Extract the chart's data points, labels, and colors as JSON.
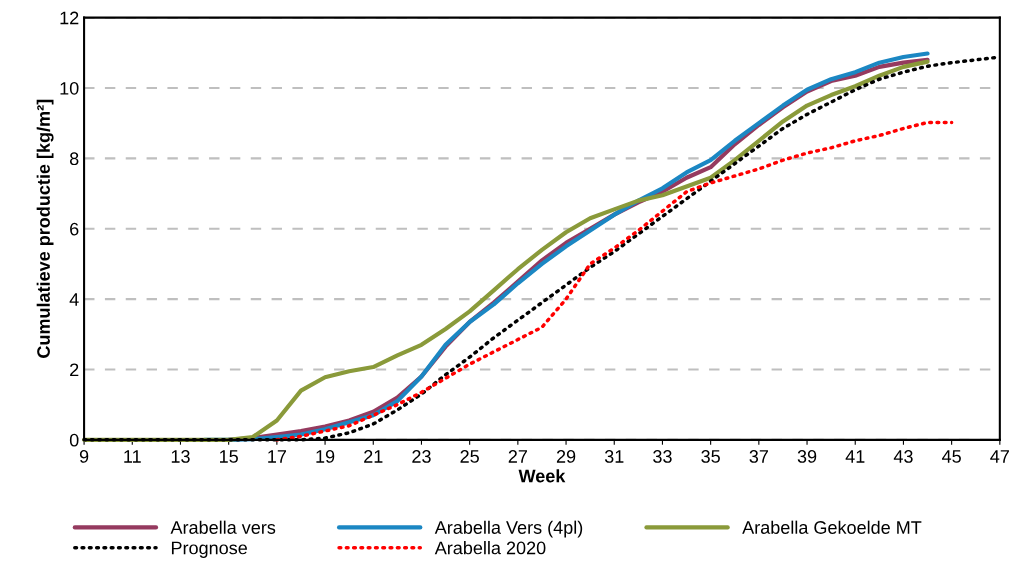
{
  "chart_data": {
    "type": "line",
    "xlabel": "Week",
    "ylabel": "Cumulatieve productie [kg/m²]",
    "xlim": [
      9,
      47
    ],
    "xticks": [
      9,
      11,
      13,
      15,
      17,
      19,
      21,
      23,
      25,
      27,
      29,
      31,
      33,
      35,
      37,
      39,
      41,
      43,
      45,
      47
    ],
    "ylim": [
      0,
      12
    ],
    "yticks": [
      0,
      2,
      4,
      6,
      8,
      10,
      12
    ],
    "grid": "y",
    "legend": "bottom",
    "marker": "none",
    "series": [
      {
        "name": "Arabella vers",
        "color": "#953a5f",
        "line_style": "solid",
        "x": [
          15,
          16,
          17,
          18,
          19,
          20,
          21,
          22,
          23,
          24,
          25,
          26,
          27,
          28,
          29,
          30,
          31,
          32,
          33,
          34,
          35,
          36,
          37,
          38,
          39,
          40,
          41,
          42,
          43,
          44
        ],
        "values": [
          0,
          0.05,
          0.15,
          0.25,
          0.38,
          0.55,
          0.8,
          1.2,
          1.8,
          2.65,
          3.35,
          3.9,
          4.5,
          5.1,
          5.6,
          6.0,
          6.4,
          6.75,
          7.05,
          7.45,
          7.75,
          8.4,
          8.95,
          9.45,
          9.9,
          10.2,
          10.35,
          10.6,
          10.72,
          10.8
        ]
      },
      {
        "name": "Arabella Vers (4pl)",
        "color": "#1b87c3",
        "line_style": "solid",
        "x": [
          14,
          15,
          16,
          17,
          18,
          19,
          20,
          21,
          22,
          23,
          24,
          25,
          26,
          27,
          28,
          29,
          30,
          31,
          32,
          33,
          34,
          35,
          36,
          37,
          38,
          39,
          40,
          41,
          42,
          43,
          44
        ],
        "values": [
          0,
          0,
          0.02,
          0.08,
          0.15,
          0.3,
          0.5,
          0.7,
          1.1,
          1.8,
          2.7,
          3.35,
          3.85,
          4.45,
          5.0,
          5.5,
          5.95,
          6.4,
          6.8,
          7.15,
          7.6,
          7.95,
          8.5,
          9.0,
          9.5,
          9.95,
          10.25,
          10.45,
          10.72,
          10.88,
          10.98
        ]
      },
      {
        "name": "Arabella Gekoelde MT",
        "color": "#8a9a3a",
        "line_style": "solid",
        "x": [
          9,
          10,
          11,
          12,
          13,
          14,
          15,
          16,
          17,
          18,
          19,
          20,
          21,
          22,
          23,
          24,
          25,
          26,
          27,
          28,
          29,
          30,
          31,
          32,
          33,
          34,
          35,
          36,
          37,
          38,
          39,
          40,
          41,
          42,
          43,
          44
        ],
        "values": [
          0,
          0,
          0,
          0,
          0,
          0,
          0,
          0.08,
          0.55,
          1.4,
          1.78,
          1.95,
          2.07,
          2.4,
          2.7,
          3.15,
          3.65,
          4.25,
          4.85,
          5.4,
          5.9,
          6.3,
          6.55,
          6.8,
          6.95,
          7.2,
          7.45,
          7.95,
          8.5,
          9.05,
          9.5,
          9.8,
          10.05,
          10.35,
          10.6,
          10.75
        ]
      },
      {
        "name": "Prognose",
        "color": "#000000",
        "line_style": "dotted",
        "x": [
          9,
          10,
          11,
          12,
          13,
          14,
          15,
          16,
          17,
          18,
          19,
          20,
          21,
          22,
          23,
          24,
          25,
          26,
          27,
          28,
          29,
          30,
          31,
          32,
          33,
          34,
          35,
          36,
          37,
          38,
          39,
          40,
          41,
          42,
          43,
          44,
          45,
          46,
          47
        ],
        "values": [
          0,
          0,
          0,
          0,
          0,
          0,
          0,
          0,
          0,
          0,
          0.05,
          0.2,
          0.45,
          0.85,
          1.3,
          1.85,
          2.35,
          2.9,
          3.4,
          3.9,
          4.4,
          4.9,
          5.35,
          5.85,
          6.35,
          6.85,
          7.35,
          7.85,
          8.35,
          8.85,
          9.25,
          9.6,
          9.95,
          10.25,
          10.45,
          10.62,
          10.72,
          10.8,
          10.88
        ]
      },
      {
        "name": "Arabella 2020",
        "color": "#ff0000",
        "line_style": "dotted",
        "x": [
          17,
          18,
          19,
          20,
          21,
          22,
          23,
          24,
          25,
          26,
          27,
          28,
          29,
          30,
          31,
          32,
          33,
          34,
          35,
          36,
          37,
          38,
          39,
          40,
          41,
          42,
          43,
          44,
          45
        ],
        "values": [
          0,
          0.1,
          0.25,
          0.4,
          0.7,
          1.0,
          1.35,
          1.75,
          2.15,
          2.5,
          2.85,
          3.2,
          4.0,
          5.0,
          5.45,
          5.95,
          6.5,
          7.05,
          7.3,
          7.5,
          7.7,
          7.95,
          8.15,
          8.3,
          8.5,
          8.65,
          8.85,
          9.02,
          9.02
        ]
      }
    ]
  }
}
